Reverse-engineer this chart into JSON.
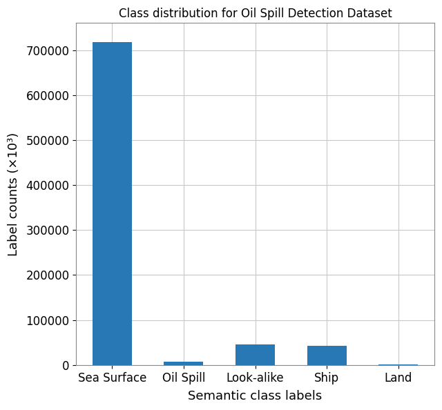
{
  "categories": [
    "Sea Surface",
    "Oil Spill",
    "Look-alike",
    "Ship",
    "Land"
  ],
  "values": [
    718000,
    8000,
    46000,
    42000,
    1000
  ],
  "bar_color": "#2878b5",
  "title": "Class distribution for Oil Spill Detection Dataset",
  "xlabel": "Semantic class labels",
  "ylabel": "Label counts (×10³)",
  "ylim": [
    0,
    760000
  ],
  "yticks": [
    0,
    100000,
    200000,
    300000,
    400000,
    500000,
    600000,
    700000
  ],
  "ytick_labels": [
    "0",
    "100000",
    "200000",
    "300000",
    "400000",
    "500000",
    "600000",
    "700000"
  ],
  "title_fontsize": 12,
  "label_fontsize": 13,
  "tick_fontsize": 12,
  "background_color": "#ffffff",
  "grid_color": "#c8c8c8",
  "spine_color": "#888888",
  "bar_width": 0.55
}
